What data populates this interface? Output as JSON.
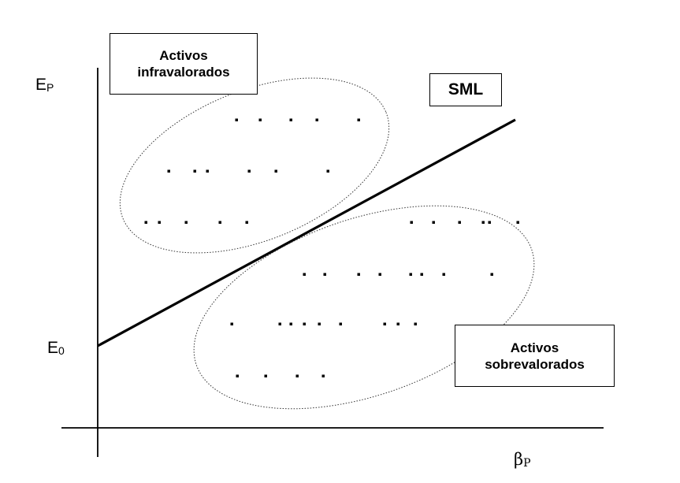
{
  "labels": {
    "undervalued_line1": "Activos",
    "undervalued_line2": "infravalorados",
    "overvalued_line1": "Activos",
    "overvalued_line2": "sobrevalorados",
    "sml": "SML",
    "y_axis_main": "E",
    "y_axis_sub": "P",
    "intercept_main": "E",
    "intercept_sub": "0",
    "x_axis_main": "β",
    "x_axis_sub": "P"
  }
}
